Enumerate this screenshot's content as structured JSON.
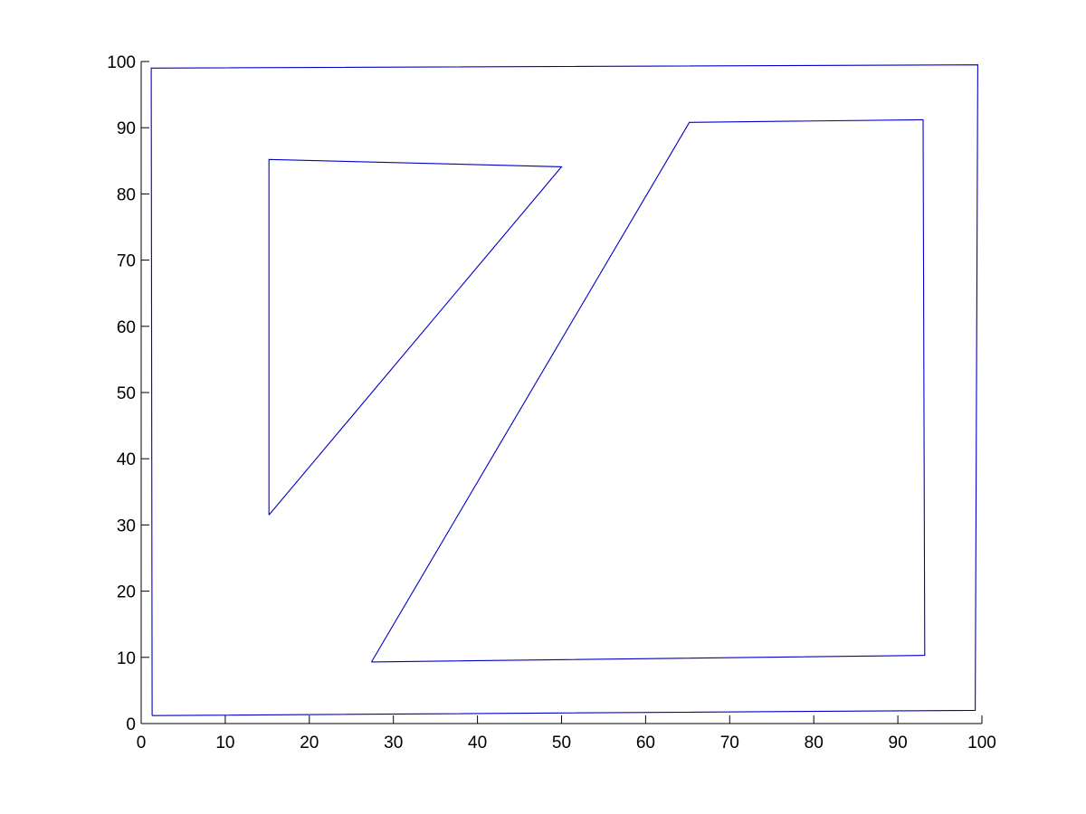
{
  "chart_data": {
    "type": "line",
    "title": "",
    "xlabel": "",
    "ylabel": "",
    "xlim": [
      0,
      100
    ],
    "ylim": [
      0,
      100
    ],
    "x_ticks": [
      0,
      10,
      20,
      30,
      40,
      50,
      60,
      70,
      80,
      90,
      100
    ],
    "y_ticks": [
      0,
      10,
      20,
      30,
      40,
      50,
      60,
      70,
      80,
      90,
      100
    ],
    "grid": false,
    "line_color": "#0000c8",
    "series": [
      {
        "points": [
          [
            1.3,
            1.2
          ],
          [
            99.2,
            2.0
          ],
          [
            99.5,
            99.5
          ],
          [
            1.2,
            99.0
          ],
          [
            1.3,
            1.2
          ]
        ]
      },
      {
        "points": [
          [
            15.2,
            31.5
          ],
          [
            15.2,
            85.2
          ],
          [
            50.0,
            84.1
          ],
          [
            15.2,
            31.5
          ]
        ]
      },
      {
        "points": [
          [
            27.4,
            9.3
          ],
          [
            93.2,
            10.3
          ],
          [
            93.0,
            91.2
          ],
          [
            65.2,
            90.8
          ],
          [
            27.4,
            9.3
          ]
        ]
      }
    ]
  }
}
